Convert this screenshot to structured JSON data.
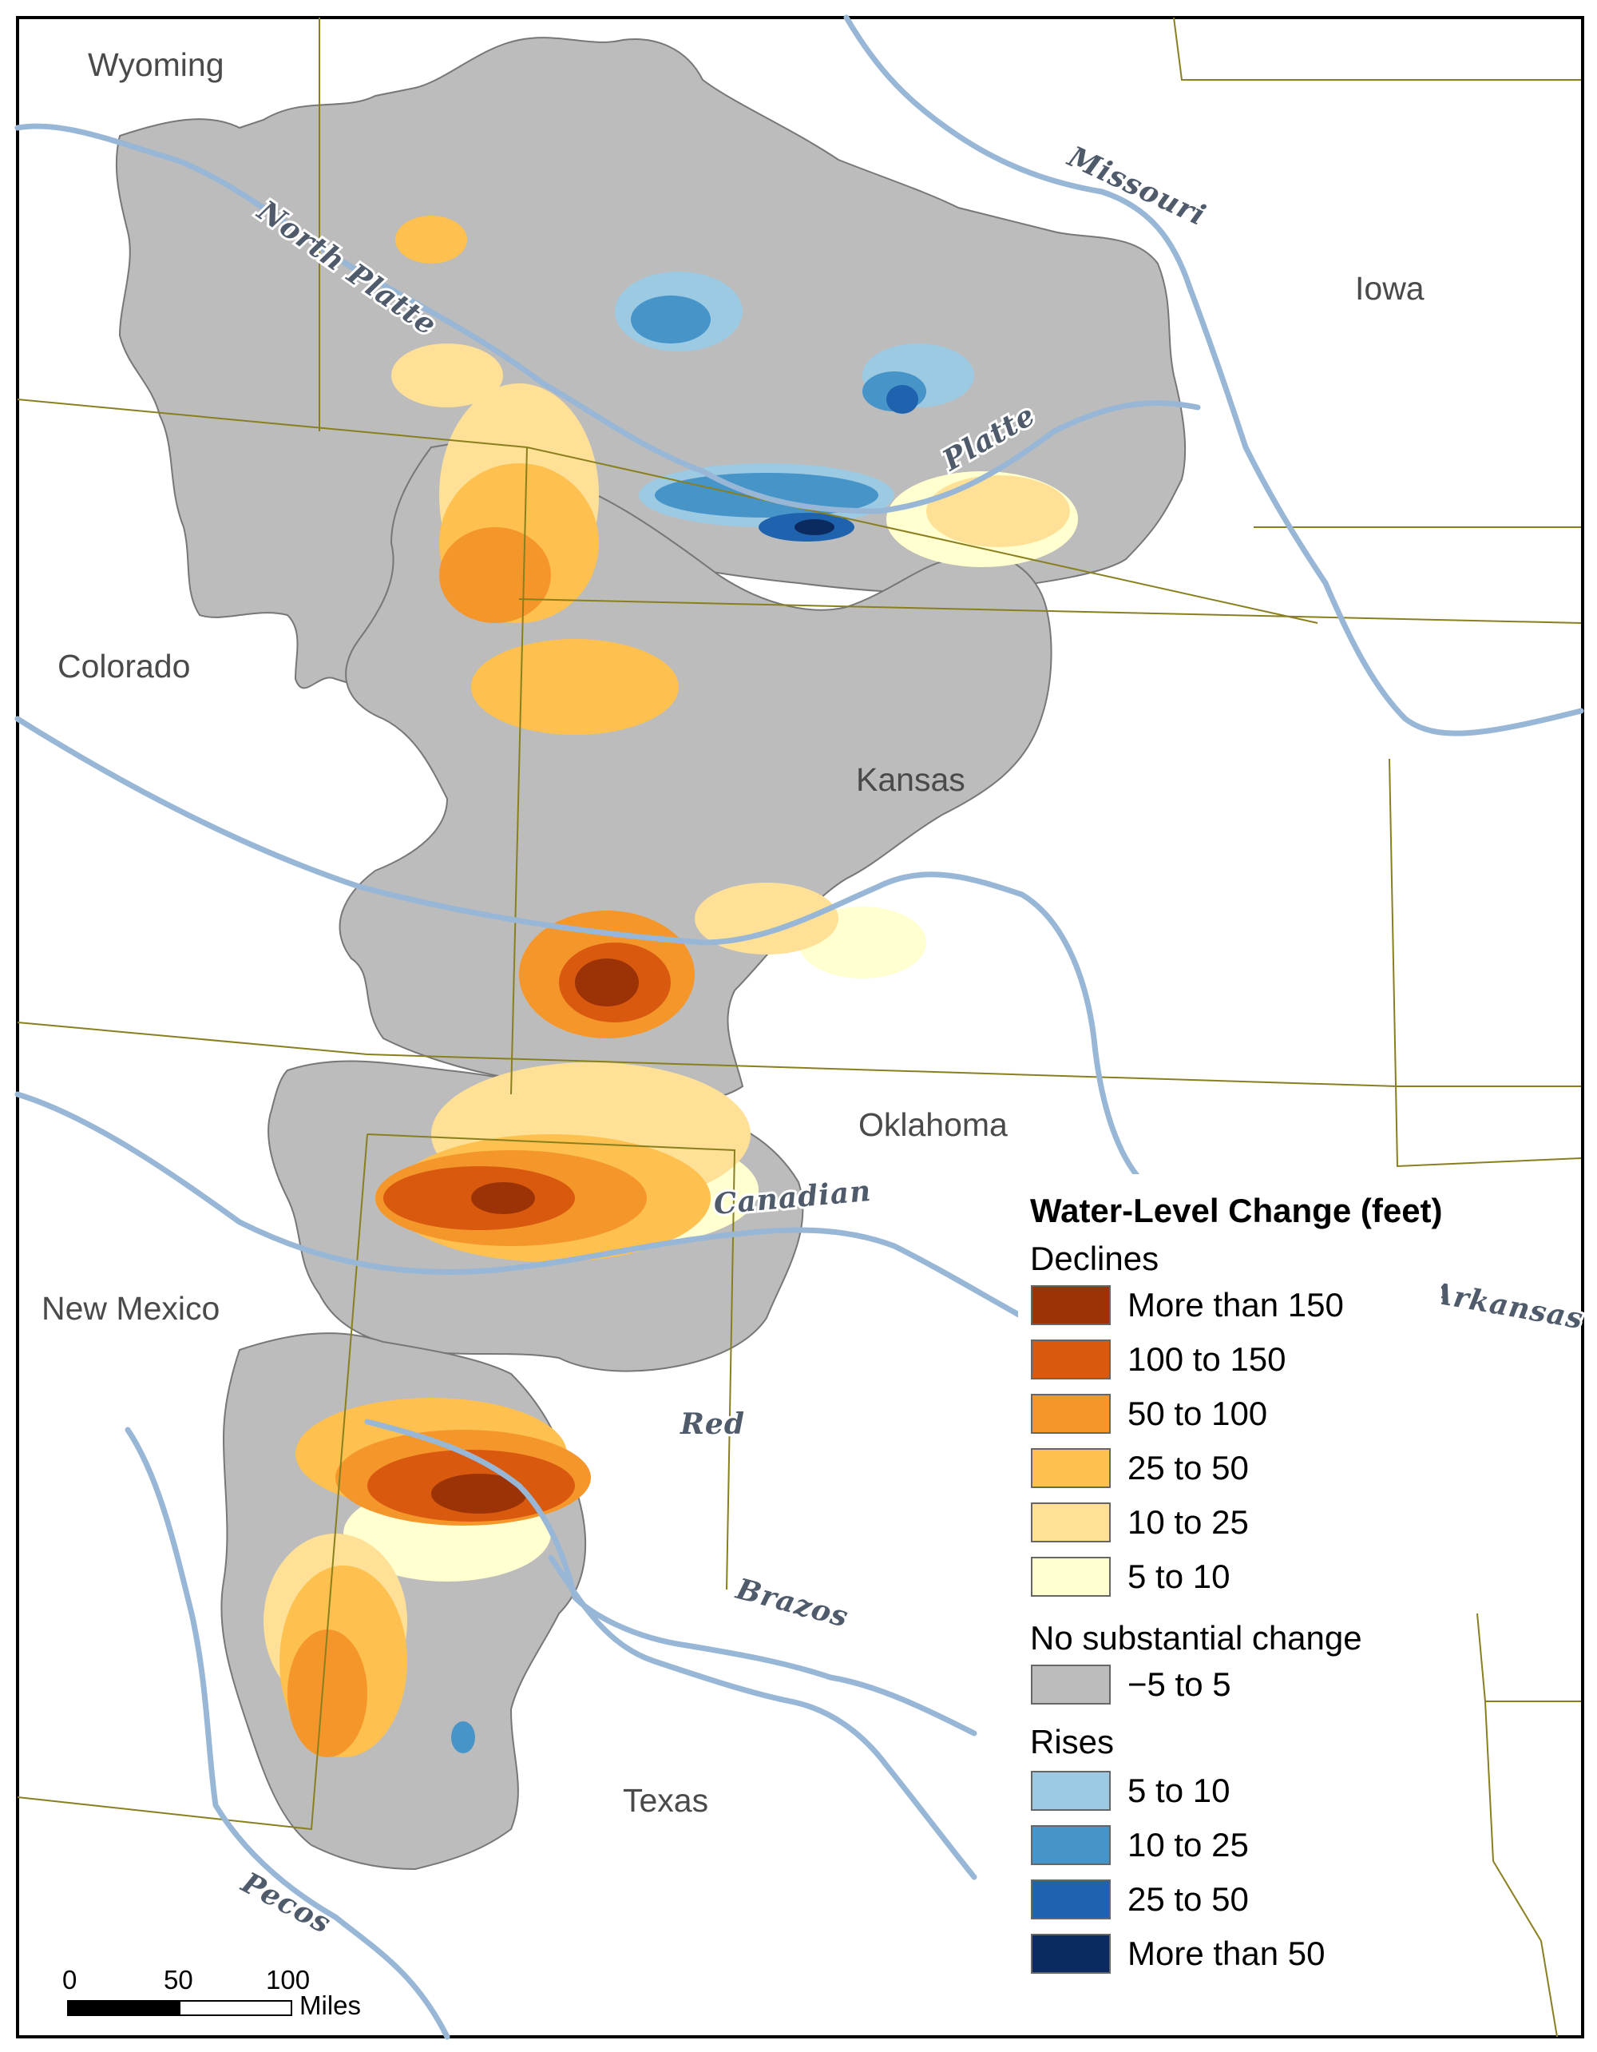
{
  "states": {
    "wyoming": "Wyoming",
    "iowa": "Iowa",
    "colorado": "Colorado",
    "kansas": "Kansas",
    "oklahoma": "Oklahoma",
    "new_mexico": "New Mexico",
    "texas": "Texas"
  },
  "rivers": {
    "north_platte": "North Platte",
    "platte": "Platte",
    "missouri": "Missouri",
    "canadian": "Canadian",
    "arkansas": "Arkansas",
    "red": "Red",
    "brazos": "Brazos",
    "pecos": "Pecos"
  },
  "legend": {
    "title": "Water-Level Change (feet)",
    "declines_heading": "Declines",
    "declines": [
      {
        "label": "More than 150",
        "color": "#9b3306"
      },
      {
        "label": "100 to 150",
        "color": "#d9590f"
      },
      {
        "label": "50 to 100",
        "color": "#f5962b"
      },
      {
        "label": "25 to 50",
        "color": "#fec04e"
      },
      {
        "label": "10 to 25",
        "color": "#fee196"
      },
      {
        "label": "5 to 10",
        "color": "#ffffd0"
      }
    ],
    "no_change_heading": "No substantial change",
    "no_change": [
      {
        "label": "−5 to 5",
        "color": "#bcbcbc"
      }
    ],
    "rises_heading": "Rises",
    "rises": [
      {
        "label": "5 to 10",
        "color": "#9ccae3"
      },
      {
        "label": "10 to 25",
        "color": "#4694c8"
      },
      {
        "label": "25 to 50",
        "color": "#1f62ad"
      },
      {
        "label": "More than 50",
        "color": "#0b2b60"
      }
    ]
  },
  "scale_bar": {
    "labels": [
      "0",
      "50",
      "100"
    ],
    "unit": "Miles"
  },
  "colors": {
    "river": "#98b7d6",
    "state_border": "#8a7f1e",
    "aquifer_base": "#bcbcbc"
  }
}
